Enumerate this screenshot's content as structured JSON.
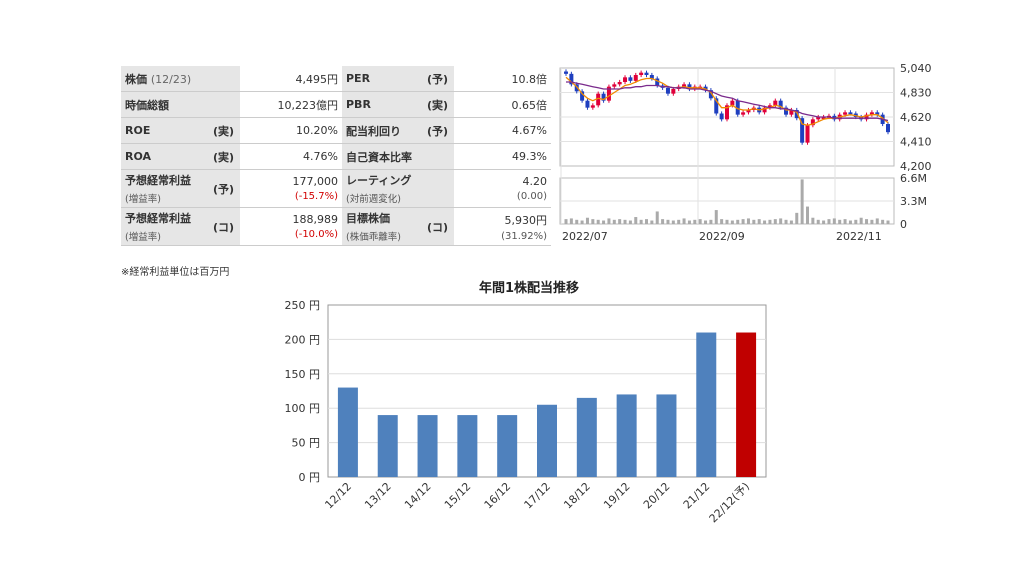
{
  "stats": {
    "rows": [
      {
        "l1": "株価",
        "l1_suffix": "(12/23)",
        "t1": "",
        "v1": "4,495円",
        "l2": "PER",
        "t2": "(予)",
        "v2": "10.8倍"
      },
      {
        "l1": "時価総額",
        "t1": "",
        "v1": "10,223億円",
        "l2": "PBR",
        "t2": "(実)",
        "v2": "0.65倍"
      },
      {
        "l1": "ROE",
        "t1": "(実)",
        "v1": "10.20%",
        "l2": "配当利回り",
        "t2": "(予)",
        "v2": "4.67%"
      },
      {
        "l1": "ROA",
        "t1": "(実)",
        "v1": "4.76%",
        "l2": "自己資本比率",
        "t2": "",
        "v2": "49.3%"
      },
      {
        "l1": "予想経常利益",
        "t1": "(予)",
        "v1": "177,000",
        "s1": "(増益率)",
        "sv1": "(-15.7%)",
        "l2": "レーティング",
        "t2": "",
        "v2": "4.20",
        "s2": "(対前週変化)",
        "sv2": "(0.00)"
      },
      {
        "l1": "予想経常利益",
        "t1": "(コ)",
        "v1": "188,989",
        "s1": "(増益率)",
        "sv1": "(-10.0%)",
        "l2": "目標株価",
        "t2": "(コ)",
        "v2": "5,930円",
        "s2": "(株価乖離率)",
        "sv2": "(31.92%)"
      }
    ],
    "note": "※経常利益単位は百万円"
  },
  "chart_data": [
    {
      "type": "line",
      "title": "",
      "price_axis": {
        "ticks": [
          "5,040",
          "4,830",
          "4,620",
          "4,410",
          "4,200"
        ],
        "ylim": [
          4200,
          5040
        ]
      },
      "volume_axis": {
        "ticks": [
          "6.6M",
          "3.3M",
          "0"
        ],
        "ylim": [
          0,
          6.6
        ]
      },
      "x_ticks": [
        "2022/07",
        "2022/09",
        "2022/11"
      ],
      "series": [
        {
          "values": [
            4990,
            4900,
            4840,
            4760,
            4700,
            4720,
            4820,
            4760,
            4880,
            4900,
            4920,
            4960,
            4930,
            4980,
            5000,
            4980,
            4950,
            4890,
            4870,
            4820,
            4860,
            4880,
            4900,
            4860,
            4880,
            4880,
            4850,
            4780,
            4650,
            4600,
            4720,
            4760,
            4640,
            4660,
            4680,
            4700,
            4660,
            4700,
            4720,
            4760,
            4700,
            4640,
            4680,
            4610,
            4400,
            4550,
            4600,
            4620,
            4620,
            4630,
            4600,
            4640,
            4660,
            4650,
            4620,
            4600,
            4640,
            4660,
            4640,
            4560,
            4490
          ]
        },
        {
          "values": [
            4960,
            4920,
            4880,
            4820,
            4780,
            4760,
            4780,
            4770,
            4800,
            4830,
            4860,
            4890,
            4900,
            4920,
            4940,
            4950,
            4950,
            4930,
            4910,
            4880,
            4870,
            4870,
            4880,
            4870,
            4870,
            4870,
            4860,
            4830,
            4760,
            4700,
            4700,
            4720,
            4690,
            4680,
            4680,
            4690,
            4680,
            4690,
            4700,
            4720,
            4710,
            4680,
            4680,
            4660,
            4560,
            4550,
            4560,
            4580,
            4600,
            4610,
            4610,
            4620,
            4630,
            4640,
            4630,
            4620,
            4630,
            4640,
            4640,
            4610,
            4570
          ]
        },
        {
          "values": [
            4920,
            4920,
            4910,
            4900,
            4890,
            4880,
            4870,
            4860,
            4860,
            4860,
            4860,
            4870,
            4870,
            4880,
            4880,
            4890,
            4890,
            4890,
            4880,
            4880,
            4870,
            4870,
            4870,
            4860,
            4860,
            4860,
            4850,
            4840,
            4820,
            4800,
            4790,
            4780,
            4760,
            4750,
            4740,
            4730,
            4720,
            4710,
            4700,
            4700,
            4690,
            4690,
            4680,
            4670,
            4650,
            4640,
            4630,
            4620,
            4620,
            4620,
            4610,
            4610,
            4610,
            4610,
            4610,
            4610,
            4610,
            4610,
            4610,
            4600,
            4590
          ]
        }
      ],
      "volume": [
        0.7,
        0.8,
        0.6,
        0.5,
        0.9,
        0.7,
        0.6,
        0.5,
        0.8,
        0.6,
        0.7,
        0.6,
        0.5,
        1.0,
        0.6,
        0.7,
        0.5,
        1.8,
        0.7,
        0.6,
        0.5,
        0.6,
        0.8,
        0.5,
        0.6,
        0.7,
        0.5,
        0.6,
        2.0,
        0.7,
        0.6,
        0.5,
        0.6,
        0.7,
        0.8,
        0.6,
        0.7,
        0.5,
        0.6,
        0.7,
        0.8,
        0.6,
        0.5,
        1.6,
        6.4,
        2.5,
        0.9,
        0.6,
        0.5,
        0.7,
        0.8,
        0.6,
        0.7,
        0.5,
        0.6,
        0.9,
        0.7,
        0.6,
        0.8,
        0.6,
        0.5
      ]
    },
    {
      "type": "bar",
      "title": "年間1株配当推移",
      "categories": [
        "12/12",
        "13/12",
        "14/12",
        "15/12",
        "16/12",
        "17/12",
        "18/12",
        "19/12",
        "20/12",
        "21/12",
        "22/12(予)"
      ],
      "values": [
        130,
        90,
        90,
        90,
        90,
        105,
        115,
        120,
        120,
        210,
        210
      ],
      "y_ticks": [
        "250 円",
        "200 円",
        "150 円",
        "100 円",
        "50 円",
        "0 円"
      ],
      "ylim": [
        0,
        250
      ],
      "colors": {
        "actual": "#4f81bd",
        "forecast": "#c00000"
      }
    }
  ]
}
